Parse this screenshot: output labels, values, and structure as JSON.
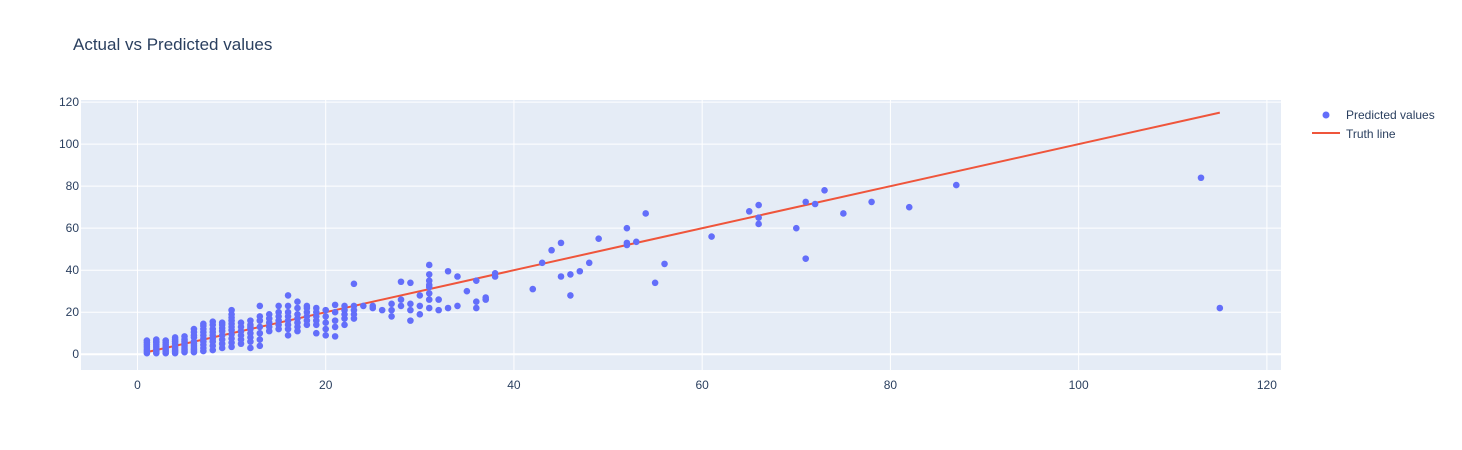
{
  "chart_data": {
    "type": "scatter",
    "title": "Actual vs Predicted values",
    "xlabel": "",
    "ylabel": "",
    "xlim": [
      -6,
      121.5
    ],
    "ylim": [
      -7.5,
      121
    ],
    "xticks": [
      0,
      20,
      40,
      60,
      80,
      100,
      120
    ],
    "yticks": [
      0,
      20,
      40,
      60,
      80,
      100,
      120
    ],
    "grid": true,
    "legend": "top-right",
    "colors": {
      "plot_bg": "#e5ecf6",
      "grid": "#ffffff",
      "points": "#636efa",
      "line": "#ef553b"
    },
    "series": [
      {
        "name": "Predicted values",
        "mode": "markers",
        "x": [
          1,
          1,
          1,
          1,
          1,
          1,
          1,
          2,
          2,
          2,
          2,
          2,
          2,
          2,
          2,
          3,
          3,
          3,
          3,
          3,
          3,
          3,
          4,
          4,
          4,
          4,
          4,
          4,
          4,
          4,
          5,
          5,
          5,
          5,
          5,
          5,
          5,
          5,
          6,
          6,
          6,
          6,
          6,
          6,
          6,
          6,
          6,
          6,
          7,
          7,
          7,
          7,
          7,
          7,
          7,
          7,
          7,
          7,
          8,
          8,
          8,
          8,
          8,
          8,
          8,
          8,
          8,
          9,
          9,
          9,
          9,
          9,
          9,
          9,
          9,
          10,
          10,
          10,
          10,
          10,
          10,
          10,
          10,
          10,
          10,
          10,
          11,
          11,
          11,
          11,
          11,
          11,
          12,
          12,
          12,
          12,
          12,
          12,
          12,
          12,
          13,
          13,
          13,
          13,
          13,
          13,
          13,
          14,
          14,
          14,
          14,
          14,
          15,
          15,
          15,
          15,
          15,
          15,
          16,
          16,
          16,
          16,
          16,
          16,
          16,
          16,
          17,
          17,
          17,
          17,
          17,
          17,
          17,
          18,
          18,
          18,
          18,
          18,
          18,
          19,
          19,
          19,
          19,
          19,
          19,
          20,
          20,
          20,
          20,
          20,
          21,
          21,
          21,
          21,
          21,
          22,
          22,
          22,
          22,
          22,
          23,
          23,
          23,
          23,
          23,
          24,
          25,
          25,
          26,
          27,
          27,
          27,
          28,
          28,
          28,
          29,
          29,
          29,
          29,
          30,
          30,
          30,
          31,
          31,
          31,
          31,
          31,
          31,
          31,
          31,
          32,
          32,
          33,
          33,
          34,
          34,
          35,
          36,
          36,
          36,
          37,
          37,
          38,
          38,
          42,
          43,
          44,
          45,
          45,
          46,
          46,
          47,
          48,
          49,
          52,
          52,
          52,
          53,
          54,
          55,
          56,
          61,
          65,
          66,
          66,
          66,
          70,
          71,
          71,
          72,
          73,
          75,
          78,
          82,
          87,
          113,
          115
        ],
        "y": [
          0.5,
          1.5,
          2.5,
          3.5,
          4.5,
          5.5,
          6.5,
          0.5,
          1.5,
          2.5,
          3.5,
          4.5,
          5.5,
          6,
          7,
          0.5,
          1.5,
          2.5,
          3.5,
          4.5,
          5.5,
          6.5,
          0.5,
          1.5,
          2.5,
          3.5,
          5,
          6,
          7,
          8,
          1,
          2,
          3,
          4,
          5,
          6,
          7,
          8.5,
          1,
          2,
          3,
          4,
          5,
          6,
          8,
          9,
          10.5,
          12,
          1.5,
          3,
          4.5,
          6,
          7.5,
          9,
          10.5,
          12,
          13.5,
          14.5,
          2,
          4,
          6,
          7.5,
          9,
          10.5,
          12,
          14,
          15.5,
          3,
          5,
          7,
          9,
          11,
          12.5,
          14,
          15,
          3.5,
          5.5,
          7.5,
          9.5,
          11.5,
          13,
          14.5,
          16,
          17.5,
          19,
          21,
          5,
          7,
          9,
          11,
          13,
          15,
          3,
          6,
          8,
          10,
          12,
          13,
          14,
          16,
          4,
          7,
          10,
          13,
          16,
          18,
          23,
          11,
          13,
          15,
          17,
          19,
          12,
          14,
          16,
          18,
          20,
          23,
          9,
          12,
          14,
          16,
          18,
          20,
          23,
          28,
          11,
          13,
          15,
          17,
          19,
          22,
          25,
          14,
          16,
          18,
          20,
          22,
          23,
          10,
          14,
          16,
          18,
          20,
          22,
          9,
          12,
          15,
          18,
          21,
          8.5,
          13,
          16,
          20,
          23.5,
          14,
          17,
          19,
          21,
          23,
          17,
          19,
          21,
          23,
          33.5,
          23,
          22,
          23,
          21,
          18,
          21,
          24,
          23,
          26,
          34.5,
          16,
          21,
          24,
          34,
          19,
          23,
          28,
          22,
          26,
          29,
          32,
          35,
          38,
          42.5,
          33,
          26,
          21,
          39.5,
          22,
          23,
          37,
          30,
          22,
          25,
          35,
          26,
          27,
          37,
          38.5,
          31,
          43.5,
          49.5,
          37,
          53,
          28,
          38,
          39.5,
          43.5,
          55,
          52,
          53,
          60,
          53.5,
          67,
          34,
          43,
          56,
          68,
          65,
          62,
          71,
          60,
          45.5,
          72.5,
          71.5,
          78,
          67,
          72.5,
          70,
          80.5,
          84,
          22
        ]
      },
      {
        "name": "Truth line",
        "mode": "lines",
        "x": [
          1,
          115
        ],
        "y": [
          1,
          115
        ]
      }
    ]
  }
}
